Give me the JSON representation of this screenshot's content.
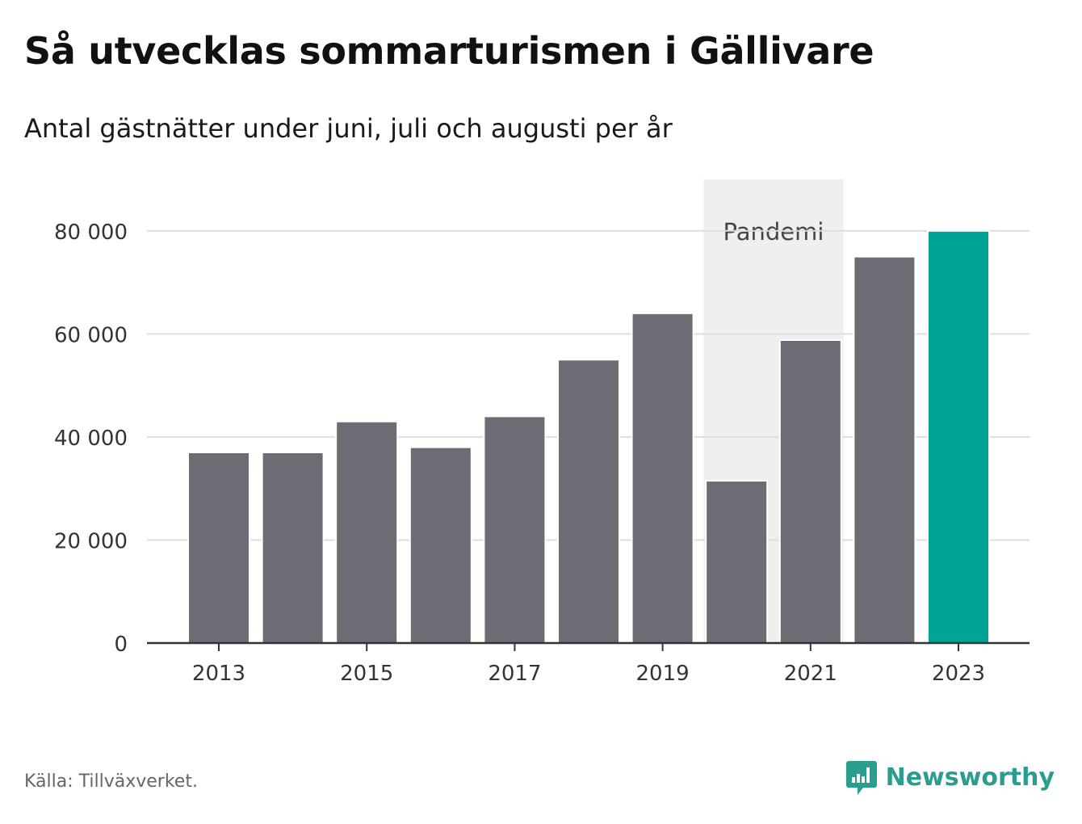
{
  "title": "Så utvecklas sommarturismen i Gällivare",
  "subtitle": "Antal gästnätter under juni, juli och augusti per år",
  "source": "Källa: Tillväxverket.",
  "brand": {
    "name": "Newsworthy",
    "icon": "newsworthy-logo-icon"
  },
  "colors": {
    "bar": "#6d6c74",
    "highlight": "#00a497",
    "band": "#efefef",
    "grid": "#dddddd",
    "axis": "#333333"
  },
  "chart_data": {
    "type": "bar",
    "categories": [
      "2013",
      "2014",
      "2015",
      "2016",
      "2017",
      "2018",
      "2019",
      "2020",
      "2021",
      "2022",
      "2023"
    ],
    "values": [
      37000,
      37000,
      43000,
      38000,
      44000,
      55000,
      64000,
      31500,
      58800,
      75000,
      80000
    ],
    "highlight_category": "2023",
    "ylim": [
      0,
      90000
    ],
    "yticks": [
      0,
      20000,
      40000,
      60000,
      80000
    ],
    "ytick_labels": [
      "0",
      "20 000",
      "40 000",
      "60 000",
      "80 000"
    ],
    "xtick_labels": [
      "2013",
      "2015",
      "2017",
      "2019",
      "2021",
      "2023"
    ],
    "grid": true,
    "annotation": {
      "label": "Pandemi",
      "from": "2020",
      "to": "2021"
    }
  }
}
